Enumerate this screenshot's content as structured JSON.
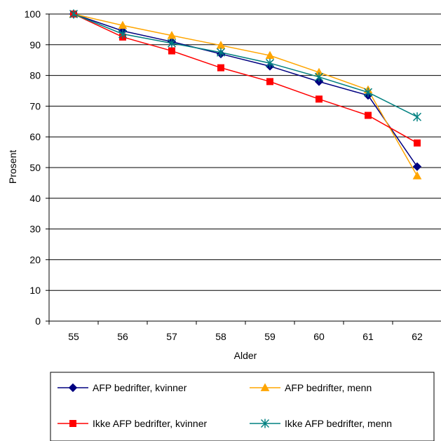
{
  "chart_data": {
    "type": "line",
    "title": "",
    "xlabel": "Alder",
    "ylabel": "Prosent",
    "ylim": [
      0,
      100
    ],
    "yticks": [
      0,
      10,
      20,
      30,
      40,
      50,
      60,
      70,
      80,
      90,
      100
    ],
    "grid": "horizontal",
    "legend_position": "bottom",
    "categories": [
      "55",
      "56",
      "57",
      "58",
      "59",
      "60",
      "61",
      "62"
    ],
    "series": [
      {
        "name": "AFP bedrifter, kvinner",
        "color": "#000080",
        "marker": "diamond",
        "values": [
          100,
          94.5,
          91,
          87,
          83,
          78,
          73.5,
          50.3
        ]
      },
      {
        "name": "AFP bedrifter, menn",
        "color": "#FFA500",
        "marker": "triangle",
        "values": [
          100,
          96.3,
          93,
          89.8,
          86.5,
          81,
          75.3,
          47.3
        ]
      },
      {
        "name": "Ikke AFP bedrifter, kvinner",
        "color": "#FF0000",
        "marker": "square",
        "values": [
          100,
          92.5,
          88,
          82.5,
          78,
          72.3,
          67,
          58
        ]
      },
      {
        "name": "Ikke AFP bedrifter, menn",
        "color": "#008080",
        "marker": "star",
        "values": [
          100,
          93.5,
          90.5,
          87.5,
          84,
          79.5,
          74.5,
          66.5
        ]
      }
    ]
  }
}
